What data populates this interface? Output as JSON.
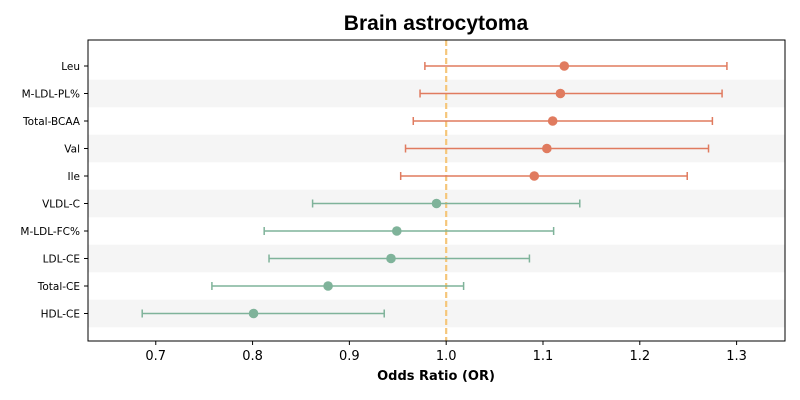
{
  "chart_data": {
    "type": "scatter",
    "subtype": "forest-plot",
    "title": "Brain astrocytoma",
    "xlabel": "Odds Ratio (OR)",
    "ylabel": "",
    "xlim": [
      0.63,
      1.35
    ],
    "xticks": [
      0.7,
      0.8,
      0.9,
      1.0,
      1.1,
      1.2,
      1.3
    ],
    "xtick_labels": [
      "0.7",
      "0.8",
      "0.9",
      "1.0",
      "1.1",
      "1.2",
      "1.3"
    ],
    "reference_line": 1.0,
    "reference_line_style": "dashed",
    "row_shading": "alternating",
    "grid": false,
    "colors": {
      "risk": "#E07B5F",
      "protective": "#7FB39A",
      "reference": "#F5C67A",
      "band": "#F5F5F5"
    },
    "rows": [
      {
        "label": "Leu",
        "or": 1.122,
        "lower": 0.978,
        "upper": 1.29,
        "direction": "risk"
      },
      {
        "label": "M-LDL-PL%",
        "or": 1.118,
        "lower": 0.973,
        "upper": 1.285,
        "direction": "risk"
      },
      {
        "label": "Total-BCAA",
        "or": 1.11,
        "lower": 0.966,
        "upper": 1.275,
        "direction": "risk"
      },
      {
        "label": "Val",
        "or": 1.104,
        "lower": 0.958,
        "upper": 1.271,
        "direction": "risk"
      },
      {
        "label": "Ile",
        "or": 1.091,
        "lower": 0.953,
        "upper": 1.249,
        "direction": "risk"
      },
      {
        "label": "VLDL-C",
        "or": 0.99,
        "lower": 0.862,
        "upper": 1.138,
        "direction": "protective"
      },
      {
        "label": "M-LDL-FC%",
        "or": 0.949,
        "lower": 0.812,
        "upper": 1.111,
        "direction": "protective"
      },
      {
        "label": "LDL-CE",
        "or": 0.943,
        "lower": 0.817,
        "upper": 1.086,
        "direction": "protective"
      },
      {
        "label": "Total-CE",
        "or": 0.878,
        "lower": 0.758,
        "upper": 1.018,
        "direction": "protective"
      },
      {
        "label": "HDL-CE",
        "or": 0.801,
        "lower": 0.686,
        "upper": 0.936,
        "direction": "protective"
      }
    ]
  }
}
